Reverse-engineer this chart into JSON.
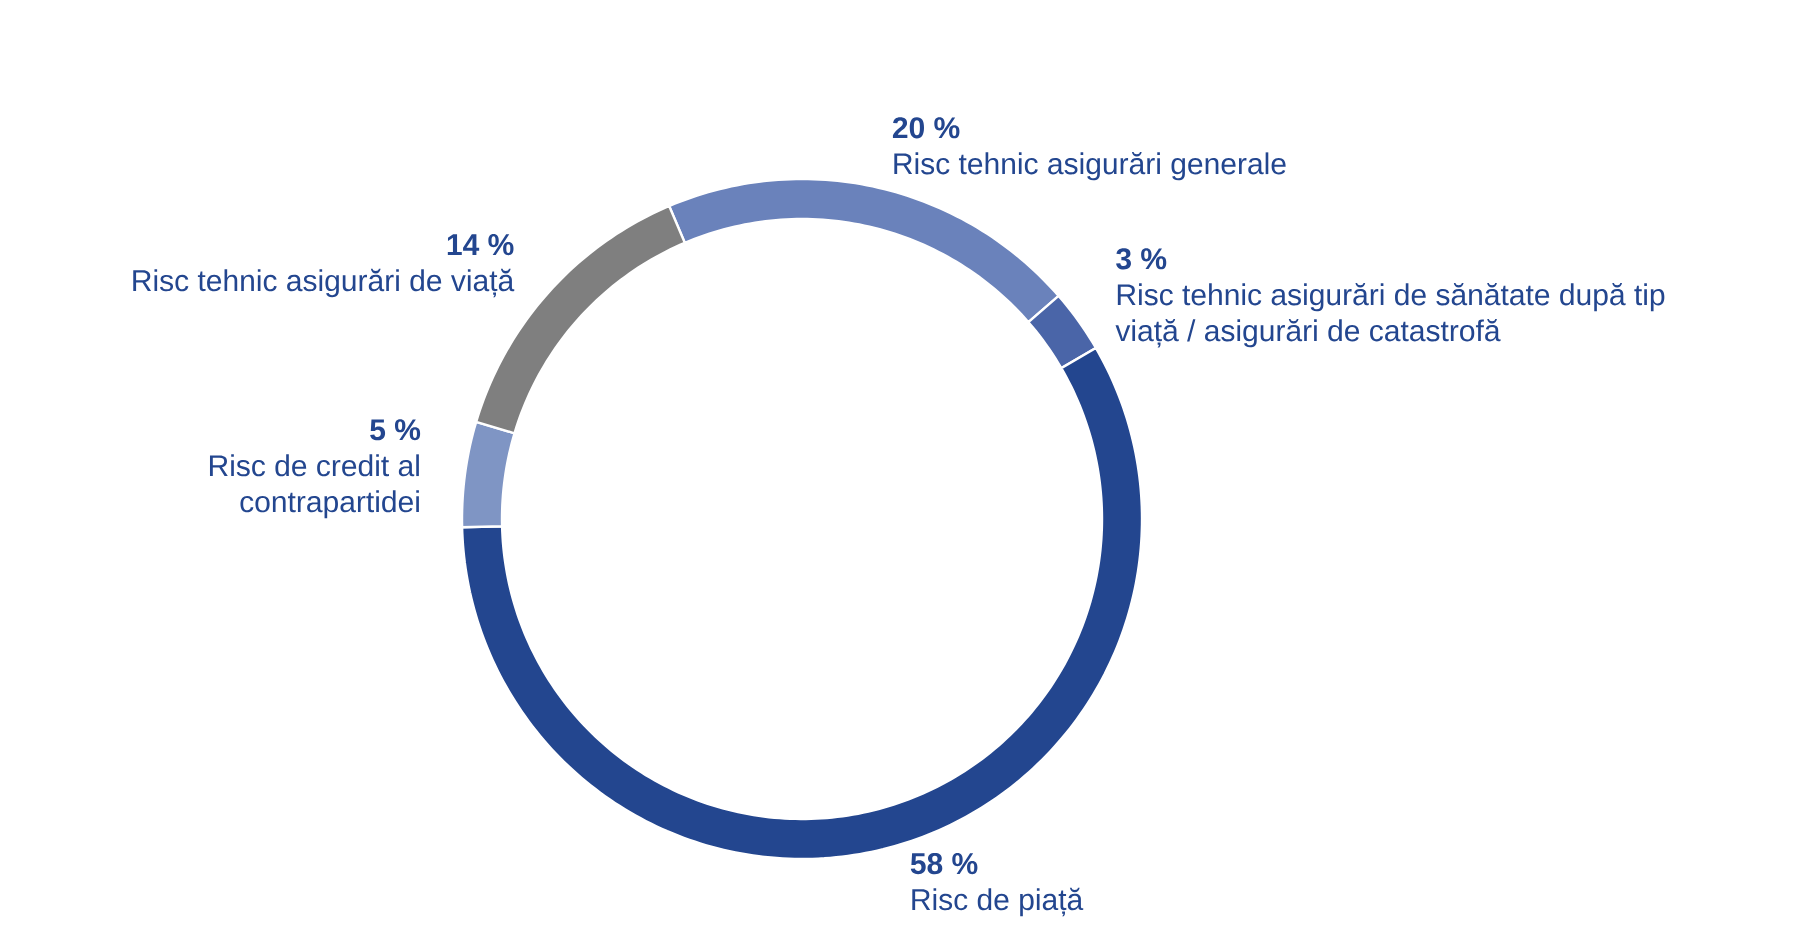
{
  "chart_data": {
    "type": "donut",
    "categories": [
      "Risc tehnic asigurări generale",
      "Risc tehnic asigurări de sănătate după tip viață / asigurări de catastrofă",
      "Risc de piață",
      "Risc de credit al contrapartidei",
      "Risc tehnic asigurări de viață"
    ],
    "values": [
      20,
      3,
      58,
      5,
      14
    ],
    "value_labels": [
      "20 %",
      "3 %",
      "58 %",
      "5 %",
      "14 %"
    ],
    "colors": [
      "#6a82bb",
      "#4a65a8",
      "#23468f",
      "#7f95c4",
      "#7f7f7f"
    ]
  }
}
